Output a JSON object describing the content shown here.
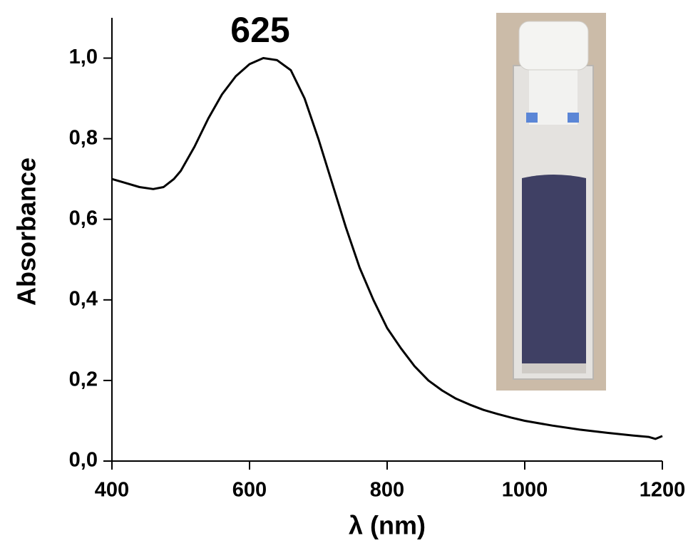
{
  "chart_data": {
    "type": "line",
    "annotation": "625",
    "x_label": "λ (nm)",
    "y_label": "Absorbance",
    "color": "#000000",
    "x": [
      400,
      420,
      440,
      460,
      475,
      490,
      500,
      520,
      540,
      560,
      580,
      600,
      620,
      640,
      660,
      680,
      700,
      720,
      740,
      760,
      780,
      800,
      820,
      840,
      860,
      880,
      900,
      920,
      940,
      960,
      980,
      1000,
      1040,
      1080,
      1120,
      1160,
      1180,
      1190,
      1200
    ],
    "values": [
      0.7,
      0.69,
      0.68,
      0.675,
      0.68,
      0.7,
      0.72,
      0.78,
      0.85,
      0.91,
      0.955,
      0.985,
      1.0,
      0.995,
      0.97,
      0.9,
      0.8,
      0.69,
      0.58,
      0.48,
      0.4,
      0.33,
      0.28,
      0.235,
      0.2,
      0.175,
      0.155,
      0.14,
      0.127,
      0.117,
      0.108,
      0.1,
      0.088,
      0.078,
      0.07,
      0.063,
      0.06,
      0.055,
      0.062
    ],
    "xlim": [
      400,
      1200
    ],
    "xticks": [
      400,
      600,
      800,
      1000,
      1200
    ],
    "ylim": [
      0,
      1.1
    ],
    "yticks": [
      {
        "value": 0,
        "label": "0,0"
      },
      {
        "value": 0.2,
        "label": "0,2"
      },
      {
        "value": 0.4,
        "label": "0,4"
      },
      {
        "value": 0.6,
        "label": "0,6"
      },
      {
        "value": 0.8,
        "label": "0,8"
      },
      {
        "value": 1.0,
        "label": "1,0"
      }
    ]
  }
}
